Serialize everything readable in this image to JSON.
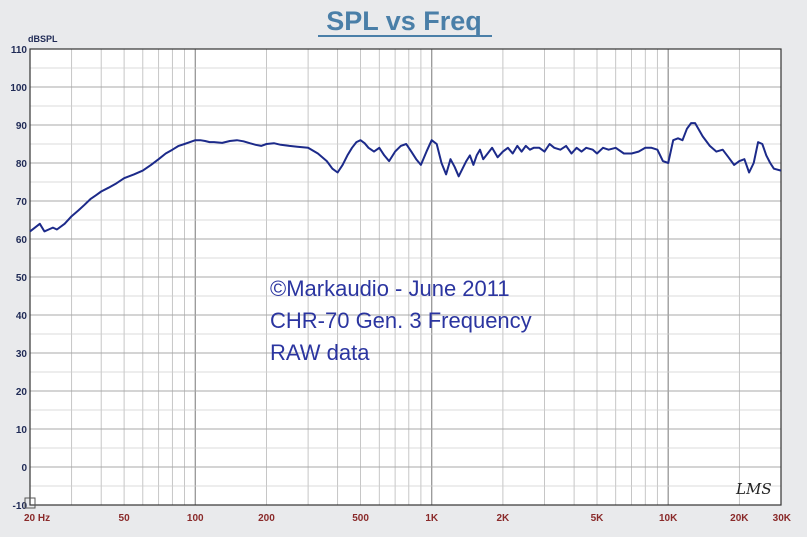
{
  "chart_data": {
    "type": "line",
    "title": "SPL vs Freq",
    "ylabel": "dBSPL",
    "xscale": "log",
    "xlim": [
      20,
      30000
    ],
    "ylim": [
      -10,
      110
    ],
    "yticks": [
      -10,
      0,
      10,
      20,
      30,
      40,
      50,
      60,
      70,
      80,
      90,
      100,
      110
    ],
    "ytick_labels": [
      "-10",
      "0",
      "10",
      "20",
      "30",
      "40",
      "50",
      "60",
      "70",
      "80",
      "90",
      "100",
      "110"
    ],
    "xticks": [
      20,
      50,
      100,
      200,
      500,
      1000,
      2000,
      5000,
      10000,
      20000,
      30000
    ],
    "xtick_labels": [
      "20 Hz",
      "50",
      "100",
      "200",
      "500",
      "1K",
      "2K",
      "5K",
      "10K",
      "20K",
      "30K"
    ],
    "grid": true,
    "annotations": [
      "©Markaudio - June 2011",
      "CHR-70 Gen. 3 Frequency",
      "RAW data"
    ],
    "watermark": "LMS",
    "colors": {
      "line": "#1c2a8a",
      "grid": "#b8b8b8",
      "background": "#ffffff",
      "title": "#4a7fa8"
    },
    "series": [
      {
        "x": [
          20,
          21,
          22,
          23,
          24,
          25,
          26,
          28,
          30,
          32,
          34,
          36,
          38,
          40,
          43,
          46,
          50,
          55,
          60,
          65,
          70,
          75,
          80,
          85,
          90,
          95,
          100,
          105,
          110,
          115,
          120,
          130,
          140,
          150,
          160,
          170,
          180,
          190,
          200,
          215,
          230,
          250,
          270,
          300,
          330,
          360,
          380,
          400,
          420,
          440,
          460,
          480,
          500,
          520,
          540,
          570,
          600,
          630,
          660,
          700,
          740,
          780,
          820,
          860,
          900,
          950,
          1000,
          1050,
          1100,
          1150,
          1200,
          1250,
          1300,
          1350,
          1400,
          1450,
          1500,
          1550,
          1600,
          1650,
          1700,
          1800,
          1900,
          2000,
          2100,
          2200,
          2300,
          2400,
          2500,
          2600,
          2700,
          2850,
          3000,
          3150,
          3300,
          3500,
          3700,
          3900,
          4100,
          4300,
          4500,
          4800,
          5000,
          5300,
          5600,
          6000,
          6500,
          7000,
          7500,
          8000,
          8500,
          9000,
          9500,
          10000,
          10500,
          11000,
          11500,
          12000,
          12500,
          13000,
          14000,
          15000,
          16000,
          17000,
          18000,
          19000,
          20000,
          21000,
          22000,
          23000,
          24000,
          25000,
          26000,
          27000,
          28000,
          30000
        ],
        "y": [
          62,
          63,
          64,
          62,
          62.5,
          63,
          62.5,
          64,
          66,
          67.5,
          69,
          70.5,
          71.5,
          72.5,
          73.5,
          74.5,
          76,
          77,
          78,
          79.5,
          81,
          82.5,
          83.5,
          84.5,
          85,
          85.5,
          86,
          86,
          85.8,
          85.5,
          85.5,
          85.3,
          85.8,
          86,
          85.7,
          85.2,
          84.8,
          84.5,
          85,
          85.2,
          84.8,
          84.5,
          84.3,
          84,
          82.5,
          80.5,
          78.5,
          77.5,
          79.5,
          82,
          84,
          85.5,
          86,
          85.2,
          84,
          83,
          84,
          82,
          80.5,
          83,
          84.5,
          85,
          83,
          81,
          79.5,
          83,
          86,
          85,
          80,
          77,
          81,
          79,
          76.5,
          78.5,
          80.5,
          82,
          79.5,
          82,
          83.5,
          81,
          82,
          84,
          81.5,
          83,
          84,
          82.5,
          84.5,
          83,
          84.5,
          83.5,
          84,
          84,
          83,
          85,
          84,
          83.5,
          84.5,
          82.5,
          84,
          83,
          84,
          83.5,
          82.5,
          84,
          83.5,
          84,
          82.5,
          82.5,
          83,
          84,
          84,
          83.5,
          80.5,
          80,
          86,
          86.5,
          86,
          89,
          90.5,
          90.5,
          87,
          84.5,
          83,
          83.5,
          81.5,
          79.5,
          80.5,
          81,
          77.5,
          80,
          85.5,
          85,
          82,
          80,
          78.5,
          78
        ]
      }
    ]
  }
}
